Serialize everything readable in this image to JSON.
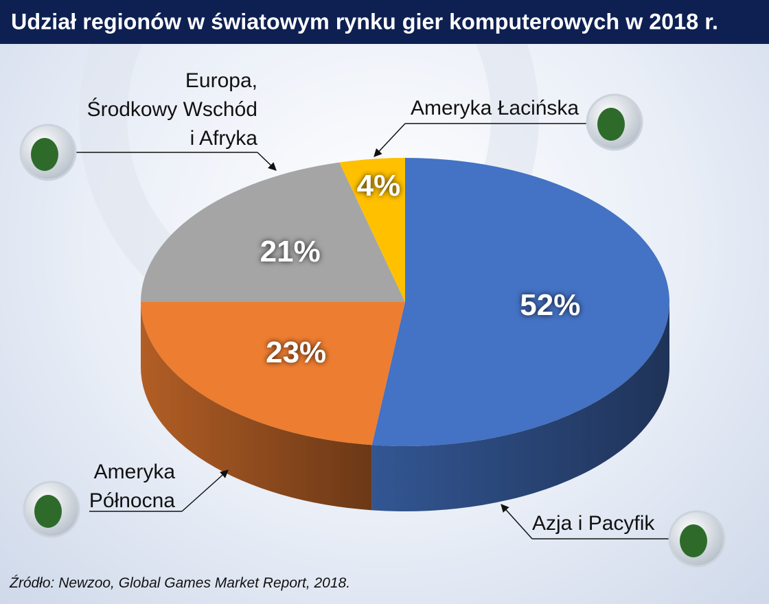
{
  "chart_data": {
    "type": "pie3d",
    "title": "Udział regionów w światowym rynku gier komputerowych w 2018 r.",
    "categories": [
      "Azja i Pacyfik",
      "Ameryka\nPółnocna",
      "Europa,\nŚrodkowy Wschód\ni Afryka",
      "Ameryka Łacińska"
    ],
    "values": [
      52,
      23,
      21,
      4
    ],
    "value_labels": [
      "52%",
      "23%",
      "21%",
      "4%"
    ],
    "colors": [
      "#4472c4",
      "#ed7d31",
      "#a5a5a5",
      "#ffc000"
    ],
    "source": "Źródło: Newzoo, Global Games Market Report, 2018."
  }
}
